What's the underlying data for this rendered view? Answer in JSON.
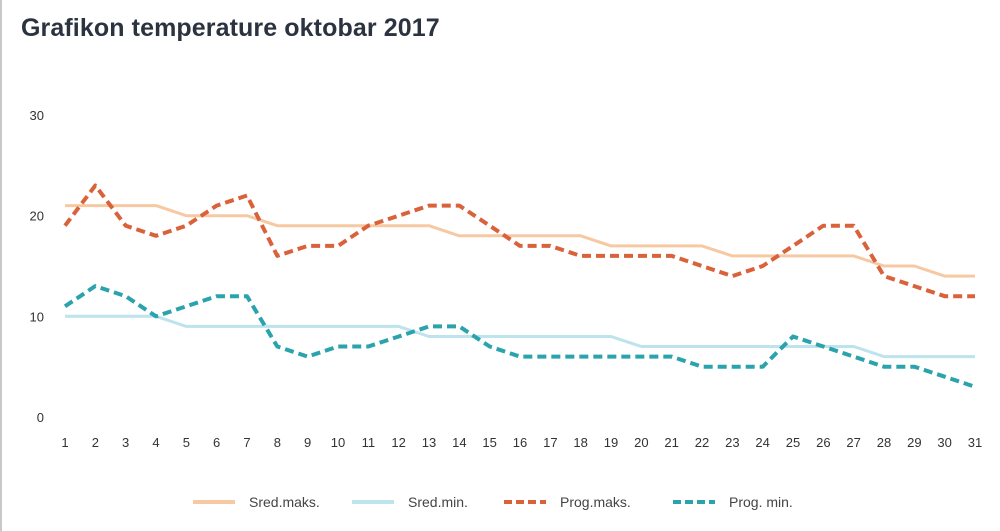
{
  "chart_data": {
    "type": "line",
    "title": "Grafikon temperature oktobar 2017",
    "xlabel": "",
    "ylabel": "",
    "x": [
      1,
      2,
      3,
      4,
      5,
      6,
      7,
      8,
      9,
      10,
      11,
      12,
      13,
      14,
      15,
      16,
      17,
      18,
      19,
      20,
      21,
      22,
      23,
      24,
      25,
      26,
      27,
      28,
      29,
      30,
      31
    ],
    "x_tick_labels": [
      "1",
      "2",
      "3",
      "4",
      "5",
      "6",
      "7",
      "8",
      "9",
      "10",
      "11",
      "12",
      "13",
      "14",
      "15",
      "16",
      "17",
      "18",
      "19",
      "20",
      "21",
      "22",
      "23",
      "24",
      "25",
      "26",
      "27",
      "28",
      "29",
      "30",
      "31"
    ],
    "y_ticks": [
      0,
      10,
      20,
      30
    ],
    "y_tick_labels": [
      "0",
      "10",
      "20",
      "30"
    ],
    "ylim": [
      0,
      30
    ],
    "grid": false,
    "legend_position": "bottom",
    "series": [
      {
        "name": "Sred.maks.",
        "color": "#f7c9a3",
        "style": "solid",
        "values": [
          21,
          21,
          21,
          21,
          20,
          20,
          20,
          19,
          19,
          19,
          19,
          19,
          19,
          18,
          18,
          18,
          18,
          18,
          17,
          17,
          17,
          17,
          16,
          16,
          16,
          16,
          16,
          15,
          15,
          14,
          14
        ]
      },
      {
        "name": "Sred.min.",
        "color": "#bde3ec",
        "style": "solid",
        "values": [
          10,
          10,
          10,
          10,
          9,
          9,
          9,
          9,
          9,
          9,
          9,
          9,
          8,
          8,
          8,
          8,
          8,
          8,
          8,
          7,
          7,
          7,
          7,
          7,
          7,
          7,
          7,
          6,
          6,
          6,
          6
        ]
      },
      {
        "name": "Prog.maks.",
        "color": "#d9623b",
        "style": "dashed",
        "values": [
          19,
          23,
          19,
          18,
          19,
          21,
          22,
          16,
          17,
          17,
          19,
          20,
          21,
          21,
          19,
          17,
          17,
          16,
          16,
          16,
          16,
          15,
          14,
          15,
          17,
          19,
          19,
          14,
          13,
          12,
          12
        ]
      },
      {
        "name": "Prog. min.",
        "color": "#2aa3ad",
        "style": "dashed",
        "values": [
          11,
          13,
          12,
          10,
          11,
          12,
          12,
          7,
          6,
          7,
          7,
          8,
          9,
          9,
          7,
          6,
          6,
          6,
          6,
          6,
          6,
          5,
          5,
          5,
          8,
          7,
          6,
          5,
          5,
          4,
          3
        ]
      }
    ]
  }
}
